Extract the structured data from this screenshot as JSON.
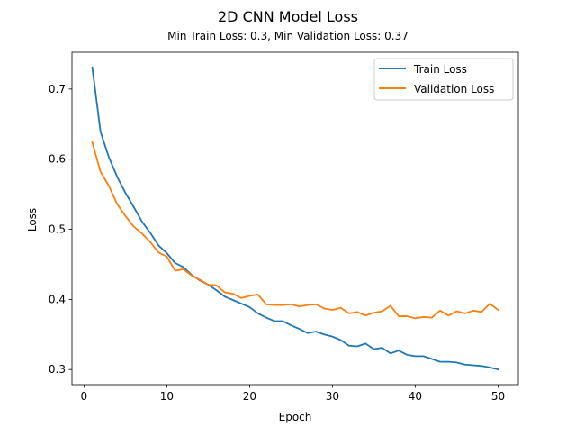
{
  "chart_data": {
    "type": "line",
    "title": "2D CNN Model Loss",
    "subtitle": "Min Train Loss: 0.3, Min Validation Loss: 0.37",
    "xlabel": "Epoch",
    "ylabel": "Loss",
    "xlim": [
      -1.45,
      52.45
    ],
    "ylim": [
      0.2784,
      0.7525
    ],
    "xticks": [
      0,
      10,
      20,
      30,
      40,
      50
    ],
    "yticks": [
      0.3,
      0.4,
      0.5,
      0.6,
      0.7
    ],
    "grid": false,
    "legend_position": "upper right",
    "x": [
      1,
      2,
      3,
      4,
      5,
      6,
      7,
      8,
      9,
      10,
      11,
      12,
      13,
      14,
      15,
      16,
      17,
      18,
      19,
      20,
      21,
      22,
      23,
      24,
      25,
      26,
      27,
      28,
      29,
      30,
      31,
      32,
      33,
      34,
      35,
      36,
      37,
      38,
      39,
      40,
      41,
      42,
      43,
      44,
      45,
      46,
      47,
      48,
      49,
      50
    ],
    "series": [
      {
        "name": "Train Loss",
        "color": "#1f77b4",
        "values": [
          0.731,
          0.639,
          0.603,
          0.575,
          0.552,
          0.532,
          0.511,
          0.495,
          0.477,
          0.466,
          0.452,
          0.446,
          0.435,
          0.427,
          0.421,
          0.413,
          0.404,
          0.399,
          0.394,
          0.389,
          0.38,
          0.374,
          0.369,
          0.369,
          0.363,
          0.358,
          0.352,
          0.354,
          0.35,
          0.347,
          0.342,
          0.334,
          0.333,
          0.337,
          0.329,
          0.331,
          0.323,
          0.327,
          0.321,
          0.319,
          0.319,
          0.315,
          0.311,
          0.311,
          0.31,
          0.307,
          0.306,
          0.305,
          0.303,
          0.3
        ]
      },
      {
        "name": "Validation Loss",
        "color": "#ff7f0e",
        "values": [
          0.624,
          0.582,
          0.562,
          0.536,
          0.519,
          0.504,
          0.494,
          0.482,
          0.467,
          0.461,
          0.441,
          0.443,
          0.434,
          0.428,
          0.421,
          0.42,
          0.41,
          0.408,
          0.402,
          0.405,
          0.407,
          0.393,
          0.392,
          0.392,
          0.393,
          0.39,
          0.392,
          0.393,
          0.387,
          0.385,
          0.388,
          0.38,
          0.382,
          0.377,
          0.381,
          0.383,
          0.391,
          0.376,
          0.376,
          0.373,
          0.375,
          0.374,
          0.384,
          0.377,
          0.383,
          0.38,
          0.384,
          0.382,
          0.394,
          0.385
        ]
      }
    ]
  }
}
